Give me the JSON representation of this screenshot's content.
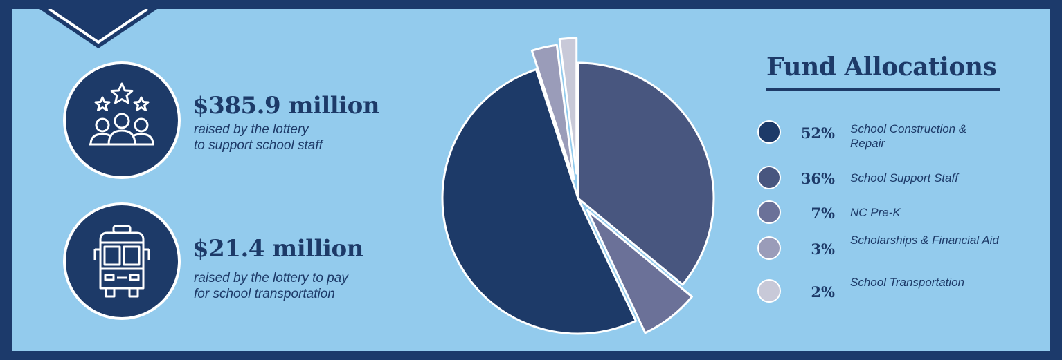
{
  "stats": [
    {
      "amount": "$385.9 million",
      "desc_line1": "raised by the lottery",
      "desc_line2": "to support school staff",
      "icon": "people-stars-icon"
    },
    {
      "amount": "$21.4 million",
      "desc_line1": "raised by the lottery to pay",
      "desc_line2": "for school transportation",
      "icon": "school-bus-icon"
    }
  ],
  "legend": {
    "title": "Fund Allocations",
    "items": [
      {
        "pct": "52%",
        "label": "School Construction & Repair",
        "color": "#1d3a68"
      },
      {
        "pct": "36%",
        "label": "School Support Staff",
        "color": "#48567f"
      },
      {
        "pct": "7%",
        "label": "NC Pre-K",
        "color": "#6b7198"
      },
      {
        "pct": "3%",
        "label": "Scholarships & Financial Aid",
        "color": "#9a9cb9"
      },
      {
        "pct": "2%",
        "label": "School Transportation",
        "color": "#c8c9d8"
      }
    ]
  },
  "chart_data": {
    "type": "pie",
    "start_angle_deg": 0,
    "direction": "clockwise",
    "slices": [
      {
        "label": "School Support Staff",
        "value": 36,
        "color": "#48567f"
      },
      {
        "label": "NC Pre-K",
        "value": 7,
        "color": "#6b7198"
      },
      {
        "label": "School Construction & Repair",
        "value": 52,
        "color": "#1d3a68"
      },
      {
        "label": "Scholarships & Financial Aid",
        "value": 3,
        "color": "#9a9cb9"
      },
      {
        "label": "School Transportation",
        "value": 2,
        "color": "#c8c9d8"
      }
    ],
    "colors": {
      "background": "#93cbed",
      "frame": "#1c3a6b",
      "stroke": "#ffffff"
    }
  }
}
